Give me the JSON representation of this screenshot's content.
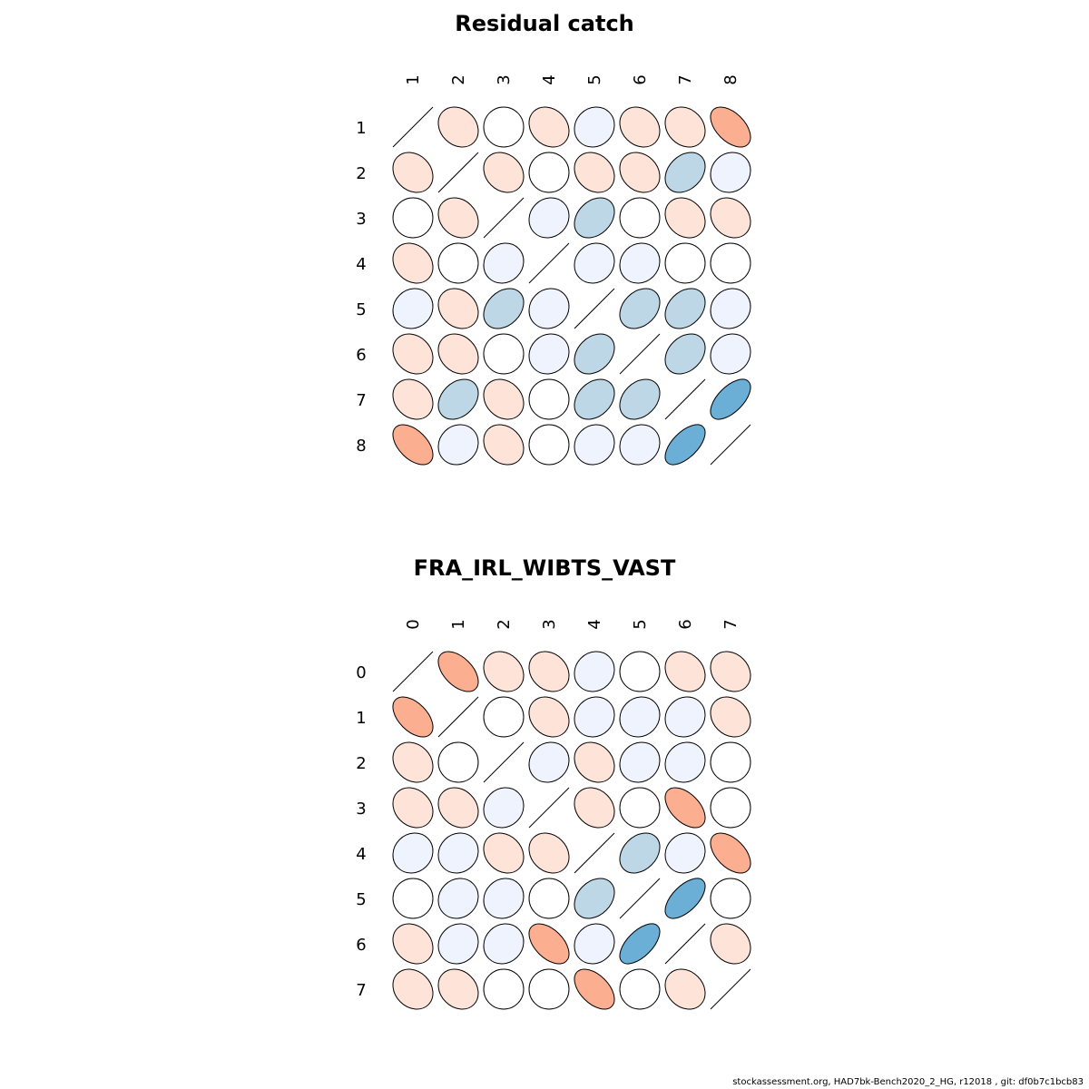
{
  "chart_data": [
    {
      "type": "correlation-ellipse-matrix",
      "title": "Residual catch",
      "labels": [
        "1",
        "2",
        "3",
        "4",
        "5",
        "6",
        "7",
        "8"
      ],
      "matrix": [
        [
          1.0,
          -0.2,
          0.0,
          -0.2,
          0.1,
          -0.2,
          -0.2,
          -0.5
        ],
        [
          -0.2,
          1.0,
          -0.2,
          0.0,
          -0.2,
          -0.2,
          0.3,
          0.1
        ],
        [
          0.0,
          -0.2,
          1.0,
          0.1,
          0.3,
          0.0,
          -0.2,
          -0.2
        ],
        [
          -0.2,
          0.0,
          0.1,
          1.0,
          0.1,
          0.1,
          0.0,
          0.0
        ],
        [
          0.1,
          -0.2,
          0.3,
          0.1,
          1.0,
          0.3,
          0.3,
          0.1
        ],
        [
          -0.2,
          -0.2,
          0.0,
          0.1,
          0.3,
          1.0,
          0.3,
          0.1
        ],
        [
          -0.2,
          0.3,
          -0.2,
          0.0,
          0.3,
          0.3,
          1.0,
          0.6
        ],
        [
          -0.5,
          0.1,
          -0.2,
          0.0,
          0.1,
          0.1,
          0.6,
          1.0
        ]
      ]
    },
    {
      "type": "correlation-ellipse-matrix",
      "title": "FRA_IRL_WIBTS_VAST",
      "labels": [
        "0",
        "1",
        "2",
        "3",
        "4",
        "5",
        "6",
        "7"
      ],
      "matrix": [
        [
          1.0,
          -0.5,
          -0.2,
          -0.2,
          0.1,
          0.0,
          -0.2,
          -0.2
        ],
        [
          -0.5,
          1.0,
          0.0,
          -0.2,
          0.1,
          0.1,
          0.1,
          -0.2
        ],
        [
          -0.2,
          0.0,
          1.0,
          0.1,
          -0.2,
          0.1,
          0.1,
          0.0
        ],
        [
          -0.2,
          -0.2,
          0.1,
          1.0,
          -0.2,
          0.0,
          -0.5,
          0.0
        ],
        [
          0.1,
          0.1,
          -0.2,
          -0.2,
          1.0,
          0.3,
          0.1,
          -0.5
        ],
        [
          0.0,
          0.1,
          0.1,
          0.0,
          0.3,
          1.0,
          0.6,
          0.0
        ],
        [
          -0.2,
          0.1,
          0.1,
          -0.5,
          0.1,
          0.6,
          1.0,
          -0.2
        ],
        [
          -0.2,
          -0.2,
          0.0,
          0.0,
          -0.5,
          0.0,
          -0.2,
          1.0
        ]
      ]
    }
  ],
  "colors": {
    "strong_negative": "#FBAE90",
    "weak_negative": "#FDE3D8",
    "zero": "#FFFFFF",
    "weak_positive": "#EEF3FD",
    "mid_positive": "#BDD7E6",
    "strong_positive": "#6BAED6"
  },
  "footer": "stockassessment.org, HAD7bk-Bench2020_2_HG, r12018 , git: df0b7c1bcb83"
}
